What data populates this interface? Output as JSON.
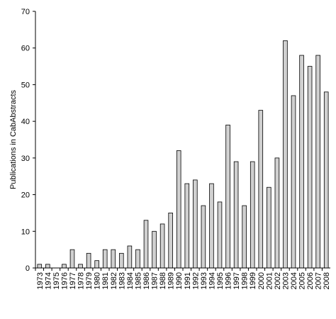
{
  "chart_data": {
    "type": "bar",
    "ylabel": "Publications in CabAbstracts",
    "xlabel": "",
    "ylim": [
      0,
      70
    ],
    "yticks": [
      0,
      10,
      20,
      30,
      40,
      50,
      60,
      70
    ],
    "grid": false,
    "categories": [
      "1973",
      "1974",
      "1975",
      "1976",
      "1977",
      "1978",
      "1979",
      "1980",
      "1981",
      "1982",
      "1983",
      "1984",
      "1985",
      "1986",
      "1987",
      "1988",
      "1989",
      "1990",
      "1991",
      "1992",
      "1993",
      "1994",
      "1995",
      "1996",
      "1997",
      "1998",
      "1999",
      "2000",
      "2001",
      "2002",
      "2003",
      "2004",
      "2005",
      "2006",
      "2007",
      "2008"
    ],
    "values": [
      1,
      1,
      0,
      1,
      5,
      1,
      4,
      2,
      5,
      5,
      4,
      6,
      5,
      13,
      10,
      12,
      15,
      32,
      23,
      24,
      17,
      23,
      18,
      39,
      29,
      17,
      29,
      43,
      22,
      30,
      62,
      47,
      58,
      55,
      58,
      48
    ],
    "colors": {
      "bar_fill": "#d0d0d0",
      "bar_stroke": "#000000"
    }
  }
}
